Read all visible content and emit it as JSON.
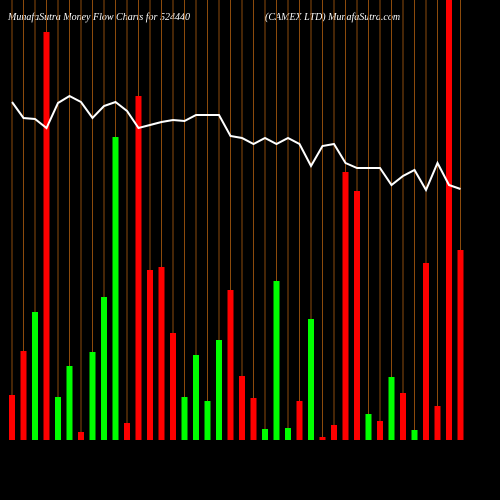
{
  "chart_data": {
    "type": "bar",
    "title": "MunafaSutra  Money Flow  Charts for 524440",
    "subtitle": "(CAMEX  LTD) MunafaSutra.com",
    "categories": [
      null,
      null,
      null,
      null,
      null,
      null,
      null,
      null,
      null,
      null,
      null,
      null,
      null,
      null,
      null,
      null,
      null,
      null,
      null,
      null,
      null,
      null,
      null,
      null,
      null,
      null,
      null,
      null,
      null,
      null,
      null,
      null,
      null,
      null,
      null,
      null,
      null,
      null,
      null,
      null
    ],
    "values": [
      45,
      89,
      128,
      408,
      43,
      74,
      8,
      88,
      143,
      303,
      17,
      344,
      170,
      173,
      107,
      43,
      85,
      39,
      100,
      150,
      64,
      42,
      11,
      159,
      12,
      39,
      121,
      3,
      15,
      268,
      249,
      26,
      19,
      63,
      47,
      10,
      177,
      34,
      460,
      190
    ],
    "colors": [
      "#ff0000",
      "#ff0000",
      "#00ff00",
      "#ff0000",
      "#00ff00",
      "#00ff00",
      "#ff0000",
      "#00ff00",
      "#00ff00",
      "#00ff00",
      "#ff0000",
      "#ff0000",
      "#ff0000",
      "#ff0000",
      "#ff0000",
      "#00ff00",
      "#00ff00",
      "#00ff00",
      "#00ff00",
      "#ff0000",
      "#ff0000",
      "#ff0000",
      "#00ff00",
      "#00ff00",
      "#00ff00",
      "#ff0000",
      "#00ff00",
      "#ff0000",
      "#ff0000",
      "#ff0000",
      "#ff0000",
      "#00ff00",
      "#ff0000",
      "#00ff00",
      "#ff0000",
      "#00ff00",
      "#ff0000",
      "#ff0000",
      "#ff0000",
      "#ff0000"
    ],
    "line": {
      "color": "#ffffff",
      "values": [
        338,
        322,
        321,
        312,
        337,
        344,
        338,
        322,
        334,
        338,
        329,
        312,
        315,
        318,
        320,
        319,
        325,
        325,
        325,
        304,
        302,
        296,
        302,
        296,
        302,
        296,
        274,
        294,
        296,
        277,
        272,
        272,
        272,
        255,
        264,
        270,
        250,
        277,
        255,
        251
      ]
    },
    "ylim": [
      0,
      440
    ],
    "grid": true,
    "grid_color": "#8b4a0c"
  }
}
